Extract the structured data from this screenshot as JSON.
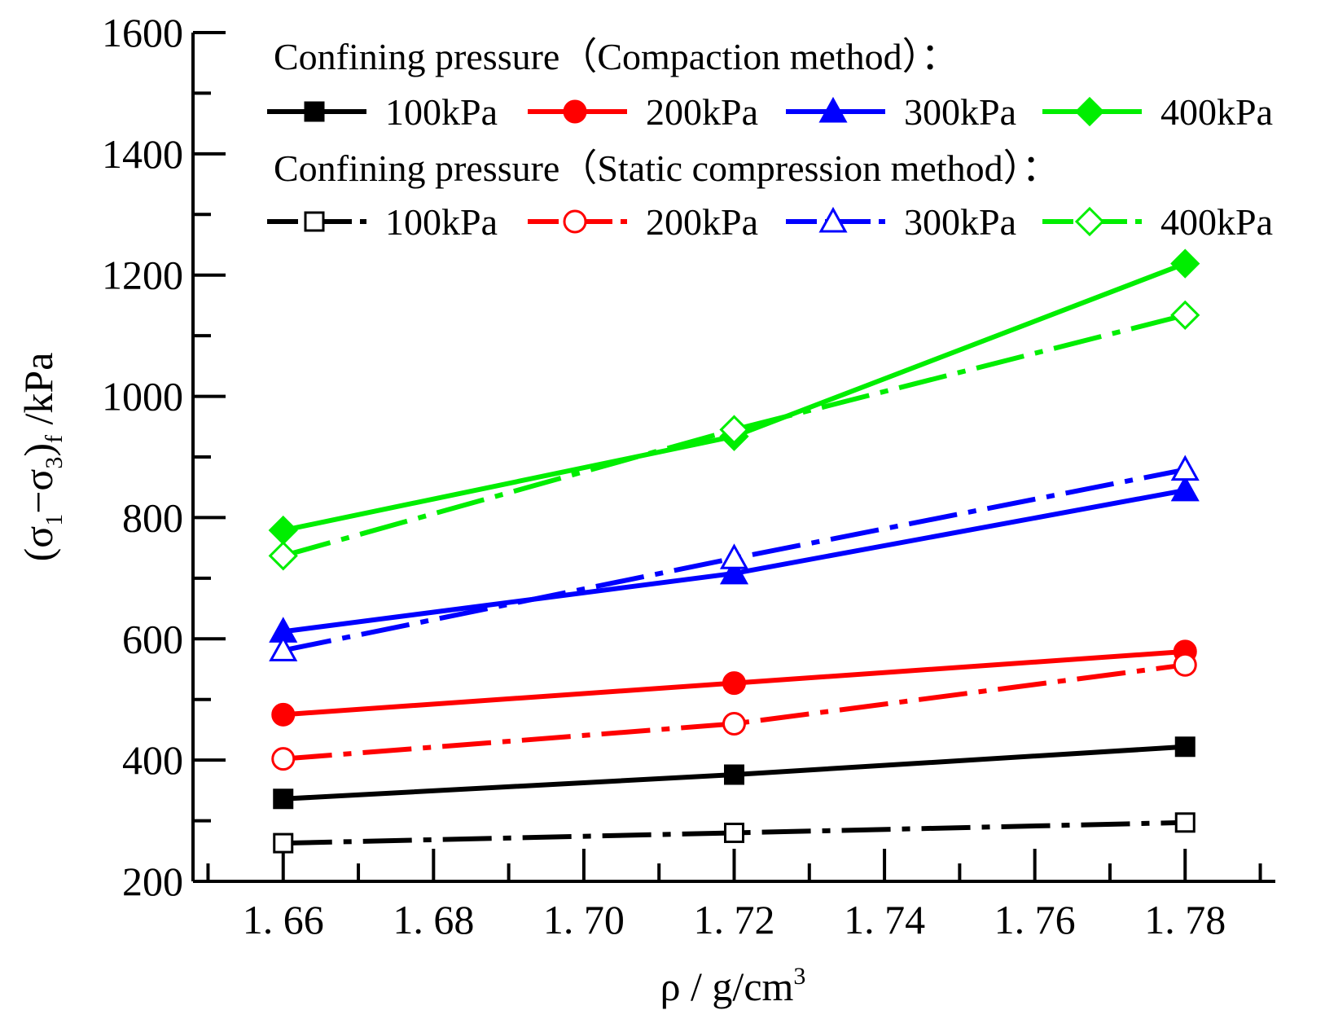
{
  "chart_data": {
    "type": "line",
    "title": "",
    "xlabel": "ρ / g/cm",
    "xlabel_sup": "3",
    "ylabel": "(σ1−σ3)f /kPa",
    "ylabel_parts": {
      "open": "(σ",
      "sub1": "1",
      "minus": "−σ",
      "sub2": "3",
      "close": ")",
      "subf": "f",
      "unit": " /kPa"
    },
    "xlim": [
      1.648,
      1.792
    ],
    "ylim": [
      200,
      1600
    ],
    "x_ticks": [
      1.66,
      1.68,
      1.7,
      1.72,
      1.74,
      1.76,
      1.78
    ],
    "x_tick_labels": [
      "1. 66",
      "1. 68",
      "1. 70",
      "1. 72",
      "1. 74",
      "1. 76",
      "1. 78"
    ],
    "y_ticks": [
      200,
      400,
      600,
      800,
      1000,
      1200,
      1400,
      1600
    ],
    "y_tick_labels": [
      "200",
      "400",
      "600",
      "800",
      "1000",
      "1200",
      "1400",
      "1600"
    ],
    "x": [
      1.66,
      1.72,
      1.78
    ],
    "legend_headings": [
      "Confining pressure（Compaction method）：",
      "Confining pressure（Static compression method）："
    ],
    "legend_position": "top-right",
    "series": [
      {
        "name": "100kPa",
        "group": "Compaction method",
        "color": "#000000",
        "marker": "square",
        "filled": true,
        "dash": "solid",
        "values": [
          336,
          376,
          422
        ]
      },
      {
        "name": "200kPa",
        "group": "Compaction method",
        "color": "#ff0000",
        "marker": "circle",
        "filled": true,
        "dash": "solid",
        "values": [
          475,
          527,
          579
        ]
      },
      {
        "name": "300kPa",
        "group": "Compaction method",
        "color": "#0000ff",
        "marker": "triangle",
        "filled": true,
        "dash": "solid",
        "values": [
          612,
          708,
          845
        ]
      },
      {
        "name": "400kPa",
        "group": "Compaction method",
        "color": "#00ee00",
        "marker": "diamond",
        "filled": true,
        "dash": "solid",
        "values": [
          779,
          934,
          1219
        ]
      },
      {
        "name": "100kPa",
        "group": "Static compression method",
        "color": "#000000",
        "marker": "square",
        "filled": false,
        "dash": "dashdot",
        "values": [
          263,
          280,
          297
        ]
      },
      {
        "name": "200kPa",
        "group": "Static compression method",
        "color": "#ff0000",
        "marker": "circle",
        "filled": false,
        "dash": "dashdot",
        "values": [
          402,
          460,
          557
        ]
      },
      {
        "name": "300kPa",
        "group": "Static compression method",
        "color": "#0000ff",
        "marker": "triangle",
        "filled": false,
        "dash": "dashdot",
        "values": [
          581,
          733,
          879
        ]
      },
      {
        "name": "400kPa",
        "group": "Static compression method",
        "color": "#00ee00",
        "marker": "diamond",
        "filled": false,
        "dash": "dashdot",
        "values": [
          737,
          945,
          1134
        ]
      }
    ]
  }
}
